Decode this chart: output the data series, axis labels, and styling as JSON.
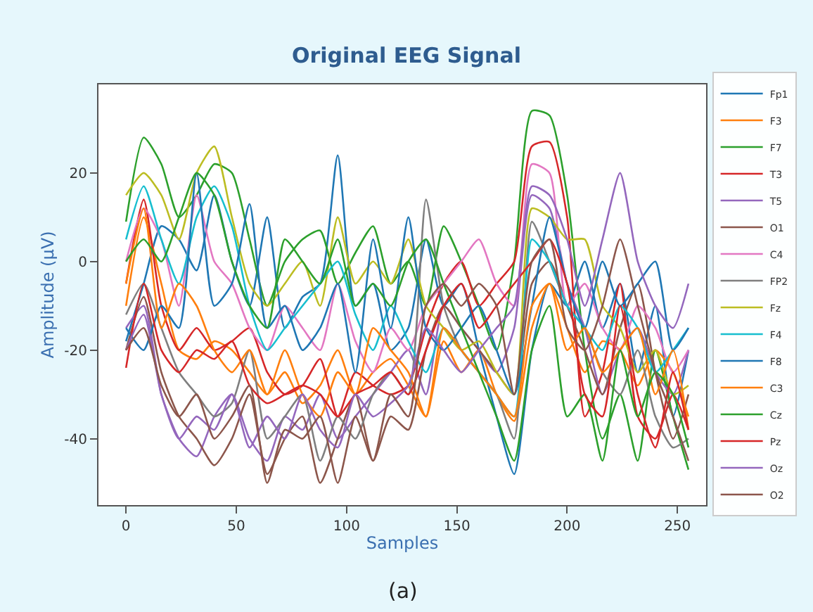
{
  "chart_data": {
    "type": "line",
    "title": "Original EEG Signal",
    "xlabel": "Samples",
    "ylabel": "Amplitude (μV)",
    "annotations": [
      "(a)"
    ],
    "x": [
      0,
      8,
      16,
      24,
      32,
      40,
      48,
      56,
      64,
      72,
      80,
      88,
      96,
      104,
      112,
      120,
      128,
      136,
      144,
      152,
      160,
      168,
      176,
      184,
      192,
      200,
      208,
      216,
      224,
      232,
      240,
      248,
      255
    ],
    "xlim": [
      -12.5,
      263
    ],
    "xticks": [
      0,
      50,
      100,
      150,
      200,
      250
    ],
    "ylim": [
      -55,
      40
    ],
    "yticks": [
      -40,
      -20,
      0,
      20
    ],
    "grid": false,
    "legend": "right",
    "line_style": "solid",
    "marker": "none",
    "series": [
      {
        "name": "Fp1",
        "color": "#1f77b4",
        "values": [
          -18,
          -5,
          8,
          5,
          -2,
          15,
          0,
          -10,
          10,
          -15,
          -8,
          -5,
          24,
          -10,
          -5,
          -20,
          -15,
          5,
          -10,
          -5,
          -20,
          -35,
          -48,
          -20,
          -5,
          -10,
          0,
          -15,
          -5,
          -25,
          -10,
          -35,
          -20
        ]
      },
      {
        "name": "F3",
        "color": "#ff7f0e",
        "values": [
          -10,
          10,
          -5,
          -20,
          -22,
          -18,
          -20,
          -25,
          -30,
          -25,
          -32,
          -28,
          -20,
          -30,
          -25,
          -22,
          -28,
          -35,
          -18,
          -25,
          -20,
          -30,
          -36,
          -15,
          -5,
          -15,
          -25,
          -18,
          -20,
          -28,
          -20,
          -25,
          -35
        ]
      },
      {
        "name": "F7",
        "color": "#2ca02c",
        "values": [
          9,
          28,
          22,
          10,
          15,
          22,
          20,
          5,
          -10,
          0,
          5,
          7,
          -5,
          2,
          8,
          -5,
          0,
          -10,
          8,
          0,
          -10,
          -20,
          0,
          34,
          33,
          15,
          -20,
          -40,
          -30,
          -45,
          -20,
          -35,
          -47
        ]
      },
      {
        "name": "T3",
        "color": "#d62728",
        "values": [
          -5,
          14,
          -10,
          -20,
          -15,
          -20,
          -18,
          -15,
          -25,
          -30,
          -28,
          -22,
          -35,
          -25,
          -28,
          -30,
          -28,
          -15,
          -5,
          0,
          -10,
          -5,
          0,
          26,
          27,
          10,
          -35,
          -25,
          -5,
          -35,
          -40,
          -30,
          -38
        ]
      },
      {
        "name": "T5",
        "color": "#9467bd",
        "values": [
          -15,
          -10,
          -30,
          -40,
          -44,
          -35,
          -30,
          -40,
          -45,
          -35,
          -38,
          -30,
          -40,
          -35,
          -30,
          -25,
          -20,
          -30,
          -10,
          -15,
          -20,
          -25,
          -15,
          15,
          12,
          -5,
          -15,
          -30,
          -20,
          -15,
          -25,
          -30,
          -20
        ]
      },
      {
        "name": "O1",
        "color": "#8c564b",
        "values": [
          -20,
          -8,
          -25,
          -35,
          -40,
          -46,
          -40,
          -30,
          -48,
          -40,
          -35,
          -50,
          -40,
          -30,
          -45,
          -35,
          -38,
          -20,
          -10,
          -15,
          -20,
          -25,
          -30,
          -5,
          0,
          -10,
          -20,
          -30,
          -15,
          -5,
          -25,
          -40,
          -30
        ]
      },
      {
        "name": "C4",
        "color": "#e377c2",
        "values": [
          0,
          12,
          5,
          -10,
          15,
          0,
          -5,
          -15,
          -20,
          -10,
          -15,
          -20,
          -5,
          -18,
          -25,
          -15,
          -20,
          -10,
          -5,
          0,
          5,
          -5,
          -10,
          22,
          20,
          -10,
          -5,
          -15,
          -20,
          -10,
          -15,
          -25,
          -20
        ]
      },
      {
        "name": "FP2",
        "color": "#7f7f7f",
        "values": [
          -12,
          -5,
          -15,
          -25,
          -30,
          -35,
          -32,
          -20,
          -40,
          -35,
          -30,
          -45,
          -35,
          -40,
          -30,
          -25,
          -30,
          14,
          -10,
          -20,
          -25,
          -30,
          -40,
          9,
          0,
          -10,
          -15,
          -25,
          -30,
          -20,
          -35,
          -42,
          -40
        ]
      },
      {
        "name": "Fz",
        "color": "#bcbd22",
        "values": [
          15,
          20,
          15,
          5,
          20,
          26,
          10,
          -5,
          -10,
          -5,
          0,
          -10,
          10,
          -5,
          0,
          -5,
          5,
          -10,
          -15,
          -20,
          -18,
          -25,
          -30,
          12,
          10,
          5,
          5,
          -10,
          -15,
          -25,
          -20,
          -30,
          -28
        ]
      },
      {
        "name": "F4",
        "color": "#17becf",
        "values": [
          5,
          17,
          5,
          -5,
          10,
          17,
          8,
          -10,
          -20,
          -15,
          -10,
          -5,
          0,
          -12,
          -20,
          -10,
          -18,
          -25,
          -15,
          -20,
          -25,
          -30,
          -35,
          5,
          0,
          -10,
          -15,
          -20,
          -10,
          -15,
          -25,
          -20,
          -15
        ]
      },
      {
        "name": "F8",
        "color": "#1f77b4",
        "values": [
          -15,
          -20,
          -10,
          -15,
          20,
          -10,
          -5,
          13,
          -15,
          -10,
          -20,
          -15,
          -5,
          -25,
          5,
          -15,
          10,
          -15,
          -20,
          -15,
          -10,
          -20,
          -30,
          -10,
          10,
          -5,
          -15,
          0,
          -10,
          -5,
          0,
          -20,
          -15
        ]
      },
      {
        "name": "C3",
        "color": "#ff7f0e",
        "values": [
          -5,
          12,
          -15,
          -5,
          -10,
          -20,
          -25,
          -20,
          -30,
          -20,
          -30,
          -35,
          -25,
          -30,
          -15,
          -20,
          -25,
          -35,
          -15,
          -20,
          -25,
          -30,
          -35,
          -10,
          -5,
          -20,
          -15,
          -25,
          -20,
          -15,
          -30,
          -20,
          -38
        ]
      },
      {
        "name": "Cz",
        "color": "#2ca02c",
        "values": [
          0,
          5,
          0,
          10,
          20,
          15,
          0,
          -10,
          -15,
          5,
          0,
          -5,
          5,
          -10,
          -5,
          -10,
          0,
          5,
          -5,
          -15,
          -25,
          -35,
          -45,
          -20,
          -10,
          -35,
          -30,
          -45,
          -20,
          -35,
          -25,
          -30,
          -42
        ]
      },
      {
        "name": "Pz",
        "color": "#d62728",
        "values": [
          -24,
          -5,
          -20,
          -25,
          -20,
          -22,
          -18,
          -28,
          -32,
          -30,
          -28,
          -30,
          -35,
          -30,
          -28,
          -25,
          -30,
          -20,
          -10,
          -5,
          -15,
          -10,
          -5,
          0,
          5,
          -5,
          -30,
          -35,
          -10,
          -30,
          -42,
          -25,
          -38
        ]
      },
      {
        "name": "Oz",
        "color": "#9467bd",
        "values": [
          -20,
          -12,
          -30,
          -40,
          -35,
          -38,
          -30,
          -42,
          -35,
          -40,
          -30,
          -38,
          -42,
          -30,
          -35,
          -32,
          -28,
          -15,
          -20,
          -25,
          -20,
          -15,
          -10,
          17,
          15,
          5,
          -10,
          5,
          20,
          0,
          -10,
          -15,
          -5
        ]
      },
      {
        "name": "O2",
        "color": "#8c564b",
        "values": [
          -20,
          -15,
          -28,
          -35,
          -30,
          -40,
          -35,
          -28,
          -50,
          -38,
          -40,
          -35,
          -50,
          -35,
          -45,
          -30,
          -35,
          -10,
          -5,
          -10,
          -5,
          -10,
          -30,
          0,
          5,
          -15,
          -20,
          -10,
          5,
          -10,
          -25,
          -35,
          -45
        ]
      }
    ]
  }
}
